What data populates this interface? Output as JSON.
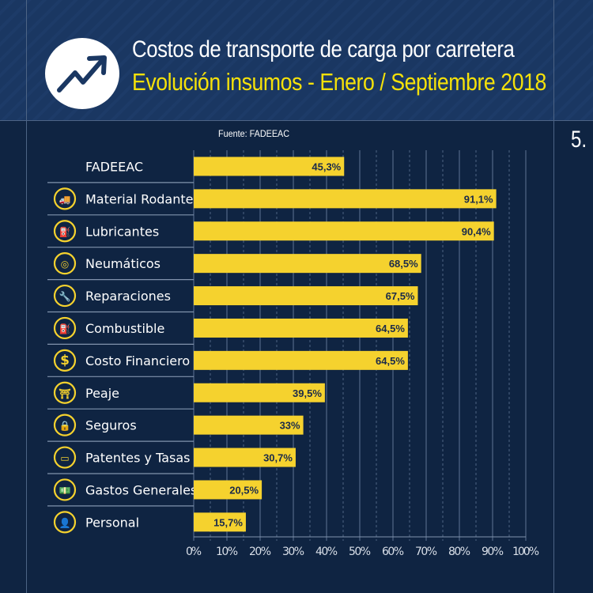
{
  "header": {
    "title": "Costos de transporte de carga por carretera",
    "subtitle": "Evolución insumos - Enero / Septiembre 2018",
    "logo_icon": "trending-up-arrow-icon",
    "source": "Fuente: FADEEAC",
    "page_number": "5."
  },
  "colors": {
    "bar": "#f5d22e",
    "background": "#0f2442",
    "header": "#1a3762",
    "subtitle": "#f5e10a",
    "icon": "#f5d22e"
  },
  "chart_data": {
    "type": "bar",
    "orientation": "horizontal",
    "categories": [
      "FADEEAC",
      "Material Rodante",
      "Lubricantes",
      "Neumáticos",
      "Reparaciones",
      "Combustible",
      "Costo Financiero",
      "Peaje",
      "Seguros",
      "Patentes y Tasas",
      "Gastos Generales",
      "Personal"
    ],
    "icons": [
      "",
      "truck-icon",
      "oil-can-icon",
      "tire-icon",
      "wrench-icon",
      "fuel-pump-icon",
      "dollar-icon",
      "toll-barrier-icon",
      "lock-icon",
      "license-plate-icon",
      "banknote-icon",
      "person-icon"
    ],
    "values": [
      45.3,
      91.1,
      90.4,
      68.5,
      67.5,
      64.5,
      64.5,
      39.5,
      33,
      30.7,
      20.5,
      15.7
    ],
    "data_labels": [
      "45,3%",
      "91,1%",
      "90,4%",
      "68,5%",
      "67,5%",
      "64,5%",
      "64,5%",
      "39,5%",
      "33%",
      "30,7%",
      "20,5%",
      "15,7%"
    ],
    "xlim": [
      0,
      100
    ],
    "xticks": [
      0,
      10,
      20,
      30,
      40,
      50,
      60,
      70,
      80,
      90,
      100
    ],
    "xtick_labels": [
      "0%",
      "10%",
      "20%",
      "30%",
      "40%",
      "50%",
      "60%",
      "70%",
      "80%",
      "90%",
      "100%"
    ],
    "grid": true
  }
}
